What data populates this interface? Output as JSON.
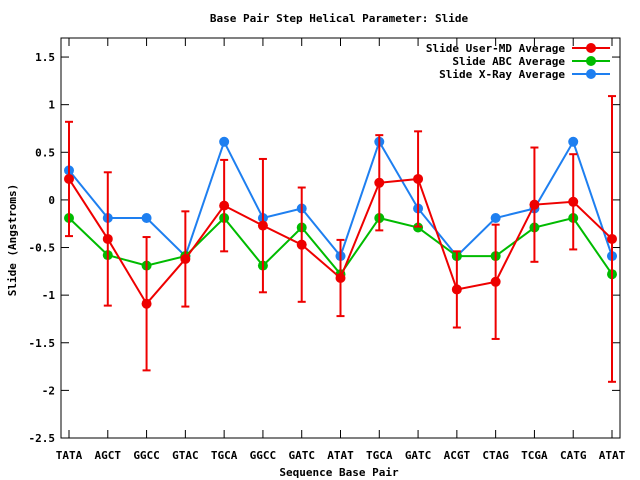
{
  "chart_data": {
    "type": "line",
    "title": "Base Pair Step Helical Parameter: Slide",
    "xlabel": "Sequence Base Pair",
    "ylabel": "Slide (Angstroms)",
    "categories": [
      "TATA",
      "AGCT",
      "GGCC",
      "GTAC",
      "TGCA",
      "GGCC",
      "GATC",
      "ATAT",
      "TGCA",
      "GATC",
      "ACGT",
      "CTAG",
      "TCGA",
      "CATG",
      "ATAT"
    ],
    "ylim": [
      -2.5,
      1.7
    ],
    "yticks": [
      {
        "value": 1.5,
        "label": "1.5"
      },
      {
        "value": 1,
        "label": "1"
      },
      {
        "value": 0.5,
        "label": "0.5"
      },
      {
        "value": 0,
        "label": "0"
      },
      {
        "value": -0.5,
        "label": "-0.5"
      },
      {
        "value": -1,
        "label": "-1"
      },
      {
        "value": -1.5,
        "label": "-1.5"
      },
      {
        "value": -2,
        "label": "-2"
      },
      {
        "value": -2.5,
        "label": "-2.5"
      }
    ],
    "grid": false,
    "legend_position": "top-right",
    "series": [
      {
        "name": "Slide User-MD Average",
        "color": "#ee0000",
        "values": [
          0.22,
          -0.41,
          -1.09,
          -0.62,
          -0.06,
          -0.27,
          -0.47,
          -0.82,
          0.18,
          0.22,
          -0.94,
          -0.86,
          -0.05,
          -0.02,
          -0.41
        ],
        "error": [
          0.6,
          0.7,
          0.7,
          0.5,
          0.48,
          0.7,
          0.6,
          0.4,
          0.5,
          0.5,
          0.4,
          0.6,
          0.6,
          0.5,
          1.5
        ]
      },
      {
        "name": "Slide ABC Average",
        "color": "#00bb00",
        "values": [
          -0.19,
          -0.58,
          -0.69,
          -0.59,
          -0.19,
          -0.69,
          -0.29,
          -0.78,
          -0.19,
          -0.29,
          -0.59,
          -0.59,
          -0.29,
          -0.19,
          -0.78
        ]
      },
      {
        "name": "Slide X-Ray Average",
        "color": "#1e7ff0",
        "values": [
          0.31,
          -0.19,
          -0.19,
          -0.59,
          0.61,
          -0.19,
          -0.09,
          -0.59,
          0.61,
          -0.09,
          -0.59,
          -0.19,
          -0.09,
          0.61,
          -0.59
        ]
      }
    ]
  }
}
